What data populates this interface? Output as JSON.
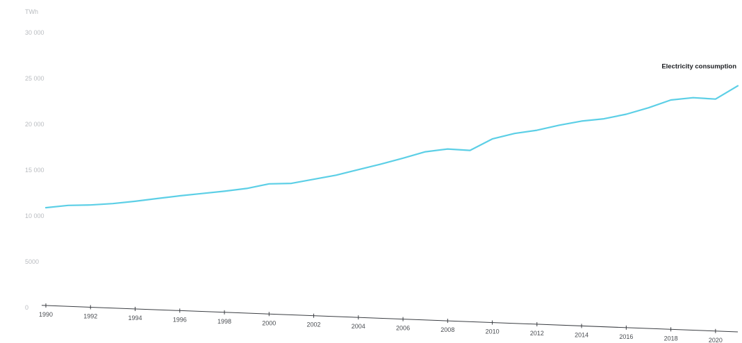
{
  "chart_data": {
    "type": "line",
    "unit_label": "TWh",
    "y_ticks": [
      {
        "value": 0,
        "label": "0"
      },
      {
        "value": 5000,
        "label": "5000"
      },
      {
        "value": 10000,
        "label": "10 000"
      },
      {
        "value": 15000,
        "label": "15 000"
      },
      {
        "value": 20000,
        "label": "20 000"
      },
      {
        "value": 25000,
        "label": "25 000"
      },
      {
        "value": 30000,
        "label": "30 000"
      }
    ],
    "x_ticks": [
      "1990",
      "1992",
      "1994",
      "1996",
      "1998",
      "2000",
      "2002",
      "2004",
      "2006",
      "2008",
      "2010",
      "2012",
      "2014",
      "2016",
      "2018",
      "2020"
    ],
    "xlim": [
      1990,
      2021
    ],
    "ylim": [
      0,
      30000
    ],
    "grid": false,
    "series": [
      {
        "name": "Electricity consumption",
        "color": "#5ccfe6",
        "x": [
          1990,
          1991,
          1992,
          1993,
          1994,
          1995,
          1996,
          1997,
          1998,
          1999,
          2000,
          2001,
          2002,
          2003,
          2004,
          2005,
          2006,
          2007,
          2008,
          2009,
          2010,
          2011,
          2012,
          2013,
          2014,
          2015,
          2016,
          2017,
          2018,
          2019,
          2020,
          2021
        ],
        "y": [
          10900,
          11150,
          11200,
          11350,
          11600,
          11900,
          12200,
          12450,
          12700,
          13000,
          13500,
          13550,
          14000,
          14450,
          15050,
          15650,
          16300,
          17000,
          17300,
          17150,
          18400,
          19000,
          19350,
          19900,
          20350,
          20600,
          21100,
          21800,
          22650,
          22900,
          22750,
          24200
        ]
      }
    ]
  }
}
